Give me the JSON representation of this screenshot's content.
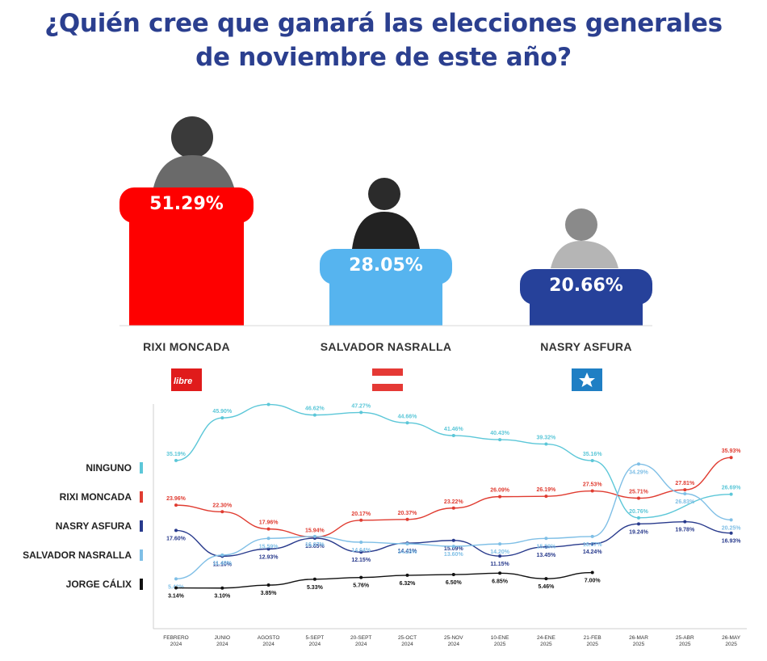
{
  "title_line1": "¿Quién cree que ganará las elecciones generales",
  "title_line2": "de noviembre de este año?",
  "candidates": [
    {
      "name": "RIXI MONCADA",
      "pct": "51.29%",
      "value": 51.29,
      "color": "#fe0000",
      "badge": "libre"
    },
    {
      "name": "SALVADOR NASRALLA",
      "pct": "28.05%",
      "value": 28.05,
      "color": "#56b4ef"
    },
    {
      "name": "NASRY ASFURA",
      "pct": "20.66%",
      "value": 20.66,
      "color": "#26419a"
    }
  ],
  "chart_data": {
    "type": "line",
    "categories": [
      "FEBRERO 2024",
      "JUNIO 2024",
      "AGOSTO 2024",
      "5-SEPT 2024",
      "20-SEPT 2024",
      "25-OCT 2024",
      "25-NOV 2024",
      "10-ENE 2025",
      "24-ENE 2025",
      "21-FEB 2025",
      "26-MAR 2025",
      "25-ABR 2025",
      "26-MAY 2025"
    ],
    "series": [
      {
        "name": "NINGUNO",
        "color": "#5cc7d8",
        "values": [
          35.19,
          45.9,
          49.28,
          46.62,
          47.27,
          44.66,
          41.46,
          40.43,
          39.32,
          35.16,
          null,
          null,
          null
        ]
      },
      {
        "name": "RIXI MONCADA",
        "color": "#e03c31",
        "values": [
          23.96,
          22.3,
          17.96,
          15.94,
          20.17,
          20.37,
          23.22,
          26.09,
          26.19,
          27.53,
          25.71,
          27.81,
          35.93
        ]
      },
      {
        "name": "NASRY ASFURA",
        "color": "#283a8c",
        "values": [
          17.6,
          11.1,
          12.93,
          15.65,
          12.15,
          14.41,
          15.09,
          11.15,
          13.45,
          14.24,
          19.24,
          19.78,
          16.93
        ]
      },
      {
        "name": "SALVADOR NASRALLA",
        "color": "#7fbfe6",
        "values": [
          5.42,
          11.4,
          15.59,
          16.07,
          14.64,
          14.23,
          13.6,
          14.2,
          15.59,
          16.07,
          34.29,
          26.83,
          20.25
        ]
      },
      {
        "name": "JORGE CÁLIX",
        "color": "#111111",
        "values": [
          3.14,
          3.1,
          3.85,
          5.33,
          5.76,
          6.32,
          6.5,
          6.85,
          5.46,
          7.0,
          null,
          null,
          null
        ]
      }
    ],
    "extra_points": {
      "NINGUNO": {
        "26-MAR 2025": 20.76,
        "26-MAY 2025": 26.69
      }
    }
  }
}
